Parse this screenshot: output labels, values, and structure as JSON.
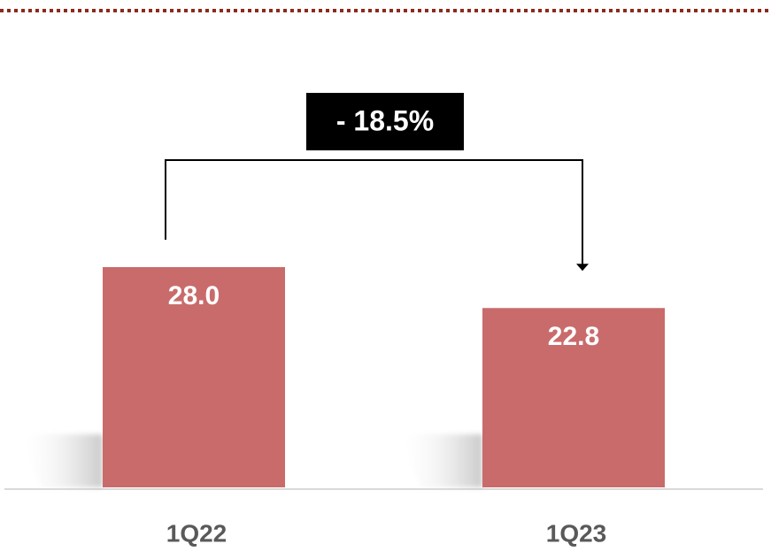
{
  "chart_data": {
    "type": "bar",
    "categories": [
      "1Q22",
      "1Q23"
    ],
    "values": [
      28.0,
      22.8
    ],
    "value_labels": [
      "28.0",
      "22.8"
    ],
    "color": "#c96b6b",
    "annotation": "- 18.5%"
  }
}
